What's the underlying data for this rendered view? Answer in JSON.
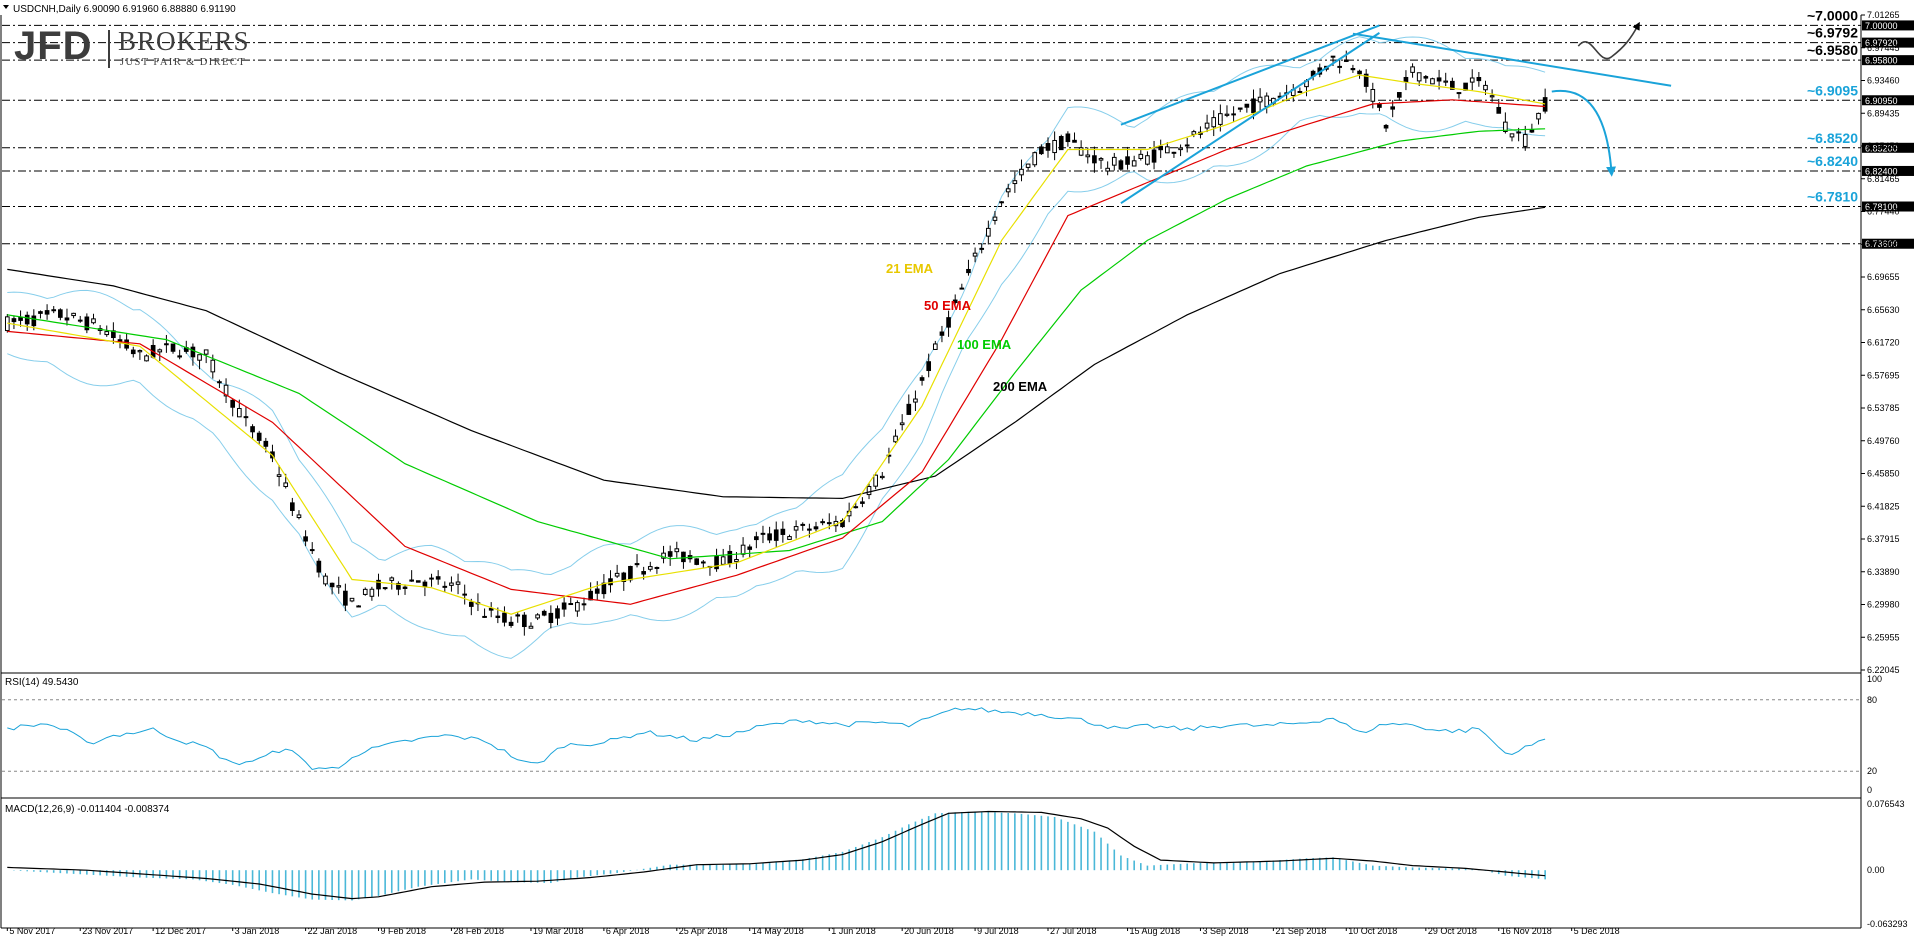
{
  "header": {
    "symbol_line": "USDCNH,Daily  6.90090 6.91960 6.88880 6.91190",
    "rsi_label": "RSI(14) 49.5430",
    "macd_label": "MACD(12,26,9) -0.011404 -0.008374"
  },
  "logo": {
    "jfd": "JFD",
    "brokers": "BROKERS",
    "tagline": "JUST FAIR & DIRECT"
  },
  "colors": {
    "candle": "#000000",
    "ema21": "#e8e000",
    "ema50": "#e00000",
    "ema100": "#00cc00",
    "ema200": "#000000",
    "bollinger": "#87ceeb",
    "annotation": "#1aa3d9",
    "rsi": "#1aa3d9",
    "macd_hist": "#4ab8d8",
    "macd_signal": "#000000"
  },
  "chart_data": {
    "type": "line",
    "symbol": "USDCNH",
    "timeframe": "Daily",
    "ylim": [
      6.2205,
      7.0126
    ],
    "price_axis_ticks": [
      "7.01265",
      "6.97445",
      "6.93460",
      "6.89435",
      "6.85450",
      "6.81465",
      "6.77440",
      "6.73455",
      "6.69655",
      "6.65630",
      "6.61720",
      "6.57695",
      "6.53785",
      "6.49760",
      "6.45850",
      "6.41825",
      "6.37915",
      "6.33890",
      "6.29980",
      "6.25955",
      "6.22045"
    ],
    "x_tick_labels": [
      "5 Nov 2017",
      "23 Nov 2017",
      "12 Dec 2017",
      "3 Jan 2018",
      "22 Jan 2018",
      "9 Feb 2018",
      "28 Feb 2018",
      "19 Mar 2018",
      "6 Apr 2018",
      "25 Apr 2018",
      "14 May 2018",
      "1 Jun 2018",
      "20 Jun 2018",
      "9 Jul 2018",
      "27 Jul 2018",
      "15 Aug 2018",
      "3 Sep 2018",
      "21 Sep 2018",
      "10 Oct 2018",
      "29 Oct 2018",
      "16 Nov 2018",
      "5 Dec 2018"
    ],
    "series_names": [
      "21 EMA",
      "50 EMA",
      "100 EMA",
      "200 EMA"
    ],
    "price_key": [
      [
        0,
        6.64
      ],
      [
        8,
        6.65
      ],
      [
        14,
        6.635
      ],
      [
        20,
        6.6
      ],
      [
        25,
        6.61
      ],
      [
        30,
        6.6
      ],
      [
        36,
        6.52
      ],
      [
        40,
        6.48
      ],
      [
        44,
        6.4
      ],
      [
        48,
        6.33
      ],
      [
        52,
        6.3
      ],
      [
        56,
        6.32
      ],
      [
        62,
        6.33
      ],
      [
        68,
        6.32
      ],
      [
        72,
        6.29
      ],
      [
        76,
        6.28
      ],
      [
        80,
        6.28
      ],
      [
        86,
        6.3
      ],
      [
        92,
        6.33
      ],
      [
        100,
        6.36
      ],
      [
        108,
        6.35
      ],
      [
        114,
        6.38
      ],
      [
        120,
        6.39
      ],
      [
        126,
        6.4
      ],
      [
        132,
        6.46
      ],
      [
        138,
        6.57
      ],
      [
        144,
        6.68
      ],
      [
        150,
        6.79
      ],
      [
        156,
        6.85
      ],
      [
        160,
        6.86
      ],
      [
        166,
        6.83
      ],
      [
        172,
        6.84
      ],
      [
        178,
        6.86
      ],
      [
        184,
        6.89
      ],
      [
        190,
        6.91
      ],
      [
        196,
        6.93
      ],
      [
        200,
        6.96
      ],
      [
        204,
        6.95
      ],
      [
        208,
        6.88
      ],
      [
        212,
        6.945
      ],
      [
        218,
        6.925
      ],
      [
        223,
        6.93
      ],
      [
        226,
        6.88
      ],
      [
        229,
        6.862
      ],
      [
        232,
        6.905
      ]
    ],
    "ema21_key": [
      [
        0,
        6.64
      ],
      [
        20,
        6.612
      ],
      [
        40,
        6.48
      ],
      [
        52,
        6.33
      ],
      [
        64,
        6.32
      ],
      [
        76,
        6.288
      ],
      [
        90,
        6.325
      ],
      [
        110,
        6.35
      ],
      [
        126,
        6.4
      ],
      [
        138,
        6.54
      ],
      [
        150,
        6.74
      ],
      [
        160,
        6.85
      ],
      [
        172,
        6.85
      ],
      [
        184,
        6.88
      ],
      [
        196,
        6.92
      ],
      [
        204,
        6.94
      ],
      [
        212,
        6.93
      ],
      [
        222,
        6.92
      ],
      [
        232,
        6.905
      ]
    ],
    "ema50_key": [
      [
        0,
        6.63
      ],
      [
        20,
        6.615
      ],
      [
        40,
        6.52
      ],
      [
        60,
        6.37
      ],
      [
        76,
        6.318
      ],
      [
        94,
        6.3
      ],
      [
        110,
        6.335
      ],
      [
        126,
        6.38
      ],
      [
        138,
        6.46
      ],
      [
        150,
        6.62
      ],
      [
        160,
        6.77
      ],
      [
        172,
        6.81
      ],
      [
        184,
        6.85
      ],
      [
        196,
        6.88
      ],
      [
        206,
        6.905
      ],
      [
        218,
        6.91
      ],
      [
        232,
        6.902
      ]
    ],
    "ema100_key": [
      [
        0,
        6.65
      ],
      [
        24,
        6.62
      ],
      [
        44,
        6.555
      ],
      [
        60,
        6.47
      ],
      [
        80,
        6.4
      ],
      [
        100,
        6.355
      ],
      [
        118,
        6.365
      ],
      [
        132,
        6.4
      ],
      [
        142,
        6.475
      ],
      [
        152,
        6.58
      ],
      [
        162,
        6.68
      ],
      [
        172,
        6.74
      ],
      [
        184,
        6.79
      ],
      [
        196,
        6.83
      ],
      [
        210,
        6.86
      ],
      [
        222,
        6.872
      ],
      [
        232,
        6.875
      ]
    ],
    "ema200_key": [
      [
        0,
        6.705
      ],
      [
        16,
        6.685
      ],
      [
        30,
        6.655
      ],
      [
        50,
        6.58
      ],
      [
        70,
        6.51
      ],
      [
        90,
        6.45
      ],
      [
        108,
        6.43
      ],
      [
        126,
        6.428
      ],
      [
        140,
        6.455
      ],
      [
        152,
        6.52
      ],
      [
        164,
        6.59
      ],
      [
        178,
        6.65
      ],
      [
        192,
        6.7
      ],
      [
        208,
        6.74
      ],
      [
        222,
        6.768
      ],
      [
        232,
        6.78
      ]
    ],
    "levels": [
      {
        "label": "~7.0000",
        "price_tag": "7.00000",
        "value": 7.0
      },
      {
        "label": "~6.9792",
        "price_tag": "6.97920",
        "value": 6.9792
      },
      {
        "label": "~6.9580",
        "price_tag": "6.95800",
        "value": 6.958
      },
      {
        "label": "~6.9095",
        "price_tag": "6.90950",
        "value": 6.9095
      },
      {
        "label": "~6.8520",
        "price_tag": "6.85200",
        "value": 6.852
      },
      {
        "label": "~6.8240",
        "price_tag": "6.82400",
        "value": 6.824
      },
      {
        "label": "~6.7810",
        "price_tag": "6.78100",
        "value": 6.781
      },
      {
        "label": "",
        "price_tag": "6.73600",
        "value": 6.736
      }
    ],
    "channel": [
      {
        "x1": 168,
        "y1": 6.785,
        "x2": 207,
        "y2": 6.991
      },
      {
        "x1": 168,
        "y1": 6.88,
        "x2": 207,
        "y2": 7.0
      }
    ],
    "resistance_line": {
      "x1": 203,
      "y1": 6.99,
      "x2": 251,
      "y2": 6.927
    },
    "rsi": {
      "ylim": [
        0,
        100
      ],
      "ticks": [
        "100",
        "80",
        "20",
        "0"
      ],
      "guide_levels": [
        80,
        20
      ],
      "key": [
        [
          0,
          56
        ],
        [
          6,
          60
        ],
        [
          10,
          51
        ],
        [
          12,
          43
        ],
        [
          16,
          50
        ],
        [
          22,
          55
        ],
        [
          26,
          46
        ],
        [
          30,
          40
        ],
        [
          34,
          26
        ],
        [
          38,
          30
        ],
        [
          42,
          40
        ],
        [
          46,
          23
        ],
        [
          50,
          22
        ],
        [
          52,
          33
        ],
        [
          56,
          40
        ],
        [
          60,
          45
        ],
        [
          66,
          50
        ],
        [
          72,
          46
        ],
        [
          78,
          27
        ],
        [
          80,
          26
        ],
        [
          84,
          42
        ],
        [
          90,
          44
        ],
        [
          96,
          53
        ],
        [
          104,
          46
        ],
        [
          110,
          52
        ],
        [
          114,
          58
        ],
        [
          120,
          63
        ],
        [
          126,
          59
        ],
        [
          132,
          61
        ],
        [
          136,
          58
        ],
        [
          142,
          70
        ],
        [
          144,
          73
        ],
        [
          150,
          70
        ],
        [
          156,
          68
        ],
        [
          162,
          63
        ],
        [
          168,
          55
        ],
        [
          172,
          58
        ],
        [
          178,
          55
        ],
        [
          184,
          59
        ],
        [
          190,
          58
        ],
        [
          196,
          61
        ],
        [
          200,
          65
        ],
        [
          204,
          52
        ],
        [
          208,
          60
        ],
        [
          212,
          59
        ],
        [
          216,
          54
        ],
        [
          220,
          54
        ],
        [
          222,
          56
        ],
        [
          226,
          35
        ],
        [
          228,
          37
        ],
        [
          232,
          47
        ]
      ]
    },
    "macd": {
      "ylim": [
        -0.063,
        0.0765
      ],
      "ticks": [
        "0.076543",
        "0.00",
        "-0.063293"
      ],
      "hist_key": [
        [
          0,
          0.0
        ],
        [
          10,
          -0.004
        ],
        [
          20,
          -0.008
        ],
        [
          28,
          -0.01
        ],
        [
          34,
          -0.016
        ],
        [
          40,
          -0.025
        ],
        [
          46,
          -0.032
        ],
        [
          52,
          -0.033
        ],
        [
          56,
          -0.028
        ],
        [
          62,
          -0.018
        ],
        [
          70,
          -0.01
        ],
        [
          76,
          -0.013
        ],
        [
          82,
          -0.014
        ],
        [
          86,
          -0.008
        ],
        [
          92,
          -0.003
        ],
        [
          100,
          0.006
        ],
        [
          108,
          0.006
        ],
        [
          114,
          0.008
        ],
        [
          120,
          0.012
        ],
        [
          126,
          0.02
        ],
        [
          132,
          0.036
        ],
        [
          136,
          0.05
        ],
        [
          140,
          0.062
        ],
        [
          146,
          0.064
        ],
        [
          152,
          0.062
        ],
        [
          158,
          0.058
        ],
        [
          164,
          0.042
        ],
        [
          168,
          0.016
        ],
        [
          172,
          0.005
        ],
        [
          180,
          0.008
        ],
        [
          190,
          0.01
        ],
        [
          196,
          0.013
        ],
        [
          200,
          0.014
        ],
        [
          206,
          0.005
        ],
        [
          212,
          0.003
        ],
        [
          218,
          0.002
        ],
        [
          222,
          0.001
        ],
        [
          226,
          -0.006
        ],
        [
          232,
          -0.01
        ]
      ],
      "signal_key": [
        [
          0,
          0.003
        ],
        [
          12,
          0.0
        ],
        [
          22,
          -0.005
        ],
        [
          30,
          -0.009
        ],
        [
          38,
          -0.015
        ],
        [
          46,
          -0.026
        ],
        [
          52,
          -0.031
        ],
        [
          56,
          -0.029
        ],
        [
          64,
          -0.018
        ],
        [
          72,
          -0.013
        ],
        [
          80,
          -0.012
        ],
        [
          88,
          -0.008
        ],
        [
          96,
          -0.002
        ],
        [
          104,
          0.006
        ],
        [
          112,
          0.007
        ],
        [
          120,
          0.011
        ],
        [
          126,
          0.017
        ],
        [
          132,
          0.031
        ],
        [
          138,
          0.05
        ],
        [
          142,
          0.062
        ],
        [
          148,
          0.064
        ],
        [
          156,
          0.063
        ],
        [
          162,
          0.056
        ],
        [
          166,
          0.046
        ],
        [
          170,
          0.026
        ],
        [
          174,
          0.011
        ],
        [
          182,
          0.008
        ],
        [
          192,
          0.01
        ],
        [
          200,
          0.013
        ],
        [
          206,
          0.01
        ],
        [
          212,
          0.005
        ],
        [
          220,
          0.002
        ],
        [
          226,
          -0.002
        ],
        [
          232,
          -0.006
        ]
      ]
    }
  }
}
